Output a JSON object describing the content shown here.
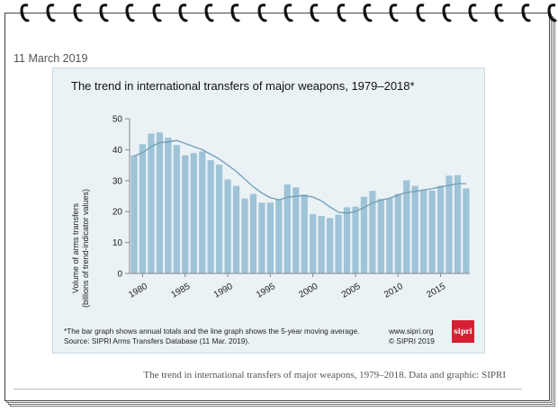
{
  "date": "11 March 2019",
  "caption": "The trend in international transfers of major weapons, 1979–2018. Data and graphic: SIPRI",
  "logo_text": "sipri",
  "footer": {
    "note": "*The bar graph shows annual totals and the line graph shows the 5-year moving average.",
    "source": "Source: SIPRI Arms Transfers Database (11 Mar. 2019).",
    "website": "www.sipri.org",
    "copyright": "© SIPRI 2019"
  },
  "colors": {
    "bar": "#9fc3d7",
    "line": "#6f9db5",
    "panel": "#eaf2f6",
    "logo": "#d71f34"
  },
  "chart_data": {
    "type": "bar",
    "title": "The trend in international transfers of major weapons, 1979–2018*",
    "ylabel": "Volume of arms transfers",
    "ylabel2": "(billions of trend-indicator values)",
    "xlabel": "",
    "ylim": [
      0,
      50
    ],
    "yticks": [
      0,
      10,
      20,
      30,
      40,
      50
    ],
    "xticks": [
      1980,
      1985,
      1990,
      1995,
      2000,
      2005,
      2010,
      2015
    ],
    "grid": false,
    "x": [
      1979,
      1980,
      1981,
      1982,
      1983,
      1984,
      1985,
      1986,
      1987,
      1988,
      1989,
      1990,
      1991,
      1992,
      1993,
      1994,
      1995,
      1996,
      1997,
      1998,
      1999,
      2000,
      2001,
      2002,
      2003,
      2004,
      2005,
      2006,
      2007,
      2008,
      2009,
      2010,
      2011,
      2012,
      2013,
      2014,
      2015,
      2016,
      2017,
      2018
    ],
    "series": [
      {
        "type": "bar",
        "values": [
          38.2,
          41.8,
          45.2,
          45.6,
          43.9,
          41.5,
          38.2,
          38.9,
          39.4,
          36.6,
          35.2,
          30.4,
          28.3,
          24.2,
          25.7,
          22.9,
          22.9,
          23.9,
          28.8,
          27.8,
          25.5,
          19.2,
          18.6,
          17.9,
          19.0,
          21.4,
          21.6,
          24.8,
          26.7,
          24.1,
          24.3,
          25.7,
          30.1,
          28.3,
          27.0,
          26.8,
          28.3,
          31.6,
          31.8,
          27.5
        ]
      },
      {
        "type": "line",
        "values": [
          38.0,
          39.0,
          41.0,
          42.3,
          42.5,
          43.0,
          42.0,
          41.0,
          40.0,
          38.5,
          37.0,
          35.0,
          33.0,
          30.5,
          28.0,
          26.0,
          24.5,
          23.8,
          24.6,
          25.0,
          25.2,
          24.7,
          23.5,
          21.5,
          19.8,
          19.5,
          20.0,
          21.3,
          22.8,
          23.7,
          24.3,
          25.3,
          26.2,
          26.5,
          27.0,
          27.4,
          28.0,
          28.5,
          29.0,
          29.0
        ]
      }
    ]
  }
}
